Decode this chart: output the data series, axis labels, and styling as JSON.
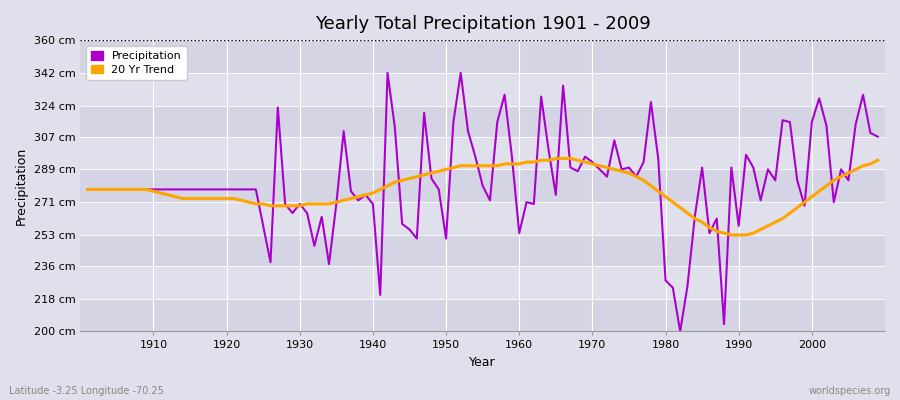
{
  "title": "Yearly Total Precipitation 1901 - 2009",
  "xlabel": "Year",
  "ylabel": "Precipitation",
  "subtitle_lat_lon": "Latitude -3.25 Longitude -70.25",
  "watermark": "worldspecies.org",
  "years": [
    1901,
    1902,
    1903,
    1904,
    1905,
    1906,
    1907,
    1908,
    1909,
    1910,
    1911,
    1912,
    1913,
    1914,
    1915,
    1916,
    1917,
    1918,
    1919,
    1920,
    1921,
    1922,
    1923,
    1924,
    1925,
    1926,
    1927,
    1928,
    1929,
    1930,
    1931,
    1932,
    1933,
    1934,
    1935,
    1936,
    1937,
    1938,
    1939,
    1940,
    1941,
    1942,
    1943,
    1944,
    1945,
    1946,
    1947,
    1948,
    1949,
    1950,
    1951,
    1952,
    1953,
    1954,
    1955,
    1956,
    1957,
    1958,
    1959,
    1960,
    1961,
    1962,
    1963,
    1964,
    1965,
    1966,
    1967,
    1968,
    1969,
    1970,
    1971,
    1972,
    1973,
    1974,
    1975,
    1976,
    1977,
    1978,
    1979,
    1980,
    1981,
    1982,
    1983,
    1984,
    1985,
    1986,
    1987,
    1988,
    1989,
    1990,
    1991,
    1992,
    1993,
    1994,
    1995,
    1996,
    1997,
    1998,
    1999,
    2000,
    2001,
    2002,
    2003,
    2004,
    2005,
    2006,
    2007,
    2008,
    2009
  ],
  "precip": [
    278,
    278,
    278,
    278,
    278,
    278,
    278,
    278,
    278,
    278,
    278,
    278,
    278,
    278,
    278,
    278,
    278,
    278,
    278,
    278,
    278,
    278,
    278,
    278,
    258,
    238,
    323,
    270,
    265,
    270,
    265,
    247,
    263,
    237,
    270,
    310,
    277,
    272,
    275,
    270,
    220,
    342,
    312,
    259,
    256,
    251,
    320,
    284,
    278,
    251,
    315,
    342,
    310,
    296,
    280,
    272,
    315,
    330,
    296,
    254,
    271,
    270,
    329,
    300,
    275,
    335,
    290,
    288,
    296,
    293,
    289,
    285,
    305,
    289,
    290,
    285,
    293,
    326,
    295,
    228,
    224,
    200,
    225,
    263,
    290,
    254,
    262,
    204,
    290,
    258,
    297,
    290,
    272,
    289,
    283,
    316,
    315,
    283,
    269,
    315,
    328,
    313,
    271,
    289,
    283,
    314,
    330,
    309,
    307
  ],
  "trend": [
    278,
    278,
    278,
    278,
    278,
    278,
    278,
    278,
    278,
    277,
    276,
    275,
    274,
    273,
    273,
    273,
    273,
    273,
    273,
    273,
    273,
    272,
    271,
    270,
    270,
    269,
    269,
    269,
    269,
    269,
    270,
    270,
    270,
    270,
    271,
    272,
    273,
    274,
    275,
    276,
    278,
    280,
    282,
    283,
    284,
    285,
    286,
    287,
    288,
    289,
    290,
    291,
    291,
    291,
    291,
    291,
    291,
    292,
    292,
    292,
    293,
    293,
    294,
    294,
    295,
    295,
    295,
    294,
    293,
    292,
    291,
    290,
    289,
    288,
    287,
    285,
    283,
    280,
    277,
    274,
    271,
    268,
    265,
    262,
    260,
    257,
    255,
    254,
    253,
    253,
    253,
    254,
    256,
    258,
    260,
    262,
    265,
    268,
    271,
    274,
    277,
    280,
    283,
    285,
    287,
    289,
    291,
    292,
    294
  ],
  "ylim": [
    200,
    360
  ],
  "yticks": [
    200,
    218,
    236,
    253,
    271,
    289,
    307,
    324,
    342,
    360
  ],
  "ytick_labels": [
    "200 cm",
    "218 cm",
    "236 cm",
    "253 cm",
    "271 cm",
    "289 cm",
    "307 cm",
    "324 cm",
    "342 cm",
    "360 cm"
  ],
  "xticks": [
    1910,
    1920,
    1930,
    1940,
    1950,
    1960,
    1970,
    1980,
    1990,
    2000
  ],
  "precip_color": "#AA00CC",
  "trend_color": "#FFA500",
  "bg_color": "#E0E0EC",
  "band_dark": "#D4D4E4",
  "band_light": "#E0E0EC",
  "grid_color": "#FFFFFF",
  "legend_precip_label": "Precipitation",
  "legend_trend_label": "20 Yr Trend"
}
